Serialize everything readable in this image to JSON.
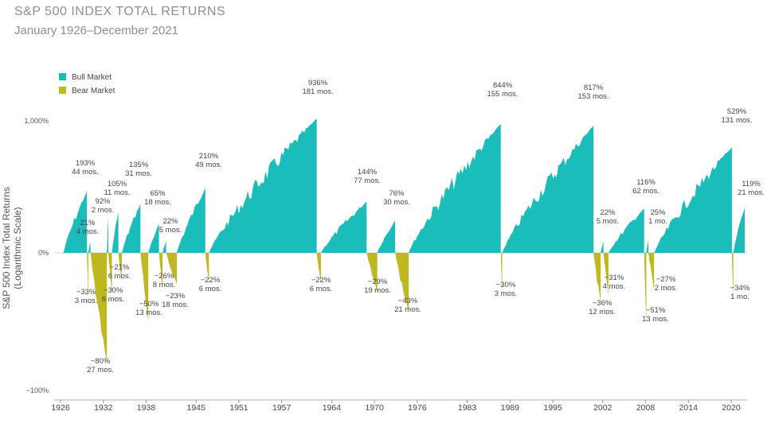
{
  "title": "S&P 500 INDEX TOTAL RETURNS",
  "subtitle": "January 1926–December 2021",
  "chart_data": {
    "type": "area",
    "title": "S&P 500 INDEX TOTAL RETURNS",
    "subtitle": "January 1926–December 2021",
    "ylabel": "S&P 500 Index Total Returns (Logarithmic Scale)",
    "y_scale": "log",
    "y_ticks": [
      "1,000%",
      "0%",
      "−100%"
    ],
    "x_ticks": [
      "1926",
      "1932",
      "1938",
      "1945",
      "1951",
      "1957",
      "1964",
      "1970",
      "1976",
      "1983",
      "1989",
      "1995",
      "2002",
      "2008",
      "2014",
      "2020"
    ],
    "xlim": [
      1926,
      2021.9
    ],
    "legend": {
      "position": "top-left",
      "entries": [
        {
          "name": "Bull Market",
          "color": "#1bbdbb"
        },
        {
          "name": "Bear Market",
          "color": "#c0b820"
        }
      ]
    },
    "series": [
      {
        "name": "Bull Market",
        "color": "#1bbdbb",
        "periods": [
          {
            "start": 1926.4,
            "end": 1929.7,
            "return_pct": 193,
            "label": "193%",
            "months": "44 mos."
          },
          {
            "start": 1929.9,
            "end": 1930.2,
            "return_pct": 21,
            "label": "21%",
            "months": "4 mos."
          },
          {
            "start": 1932.5,
            "end": 1932.7,
            "return_pct": 92,
            "label": "92%",
            "months": "2 mos."
          },
          {
            "start": 1933.2,
            "end": 1934.1,
            "return_pct": 105,
            "label": "105%",
            "months": "11 mos."
          },
          {
            "start": 1934.6,
            "end": 1937.2,
            "return_pct": 135,
            "label": "135%",
            "months": "31 mos."
          },
          {
            "start": 1938.3,
            "end": 1939.8,
            "return_pct": 65,
            "label": "65%",
            "months": "18 mos."
          },
          {
            "start": 1940.3,
            "end": 1940.8,
            "return_pct": 22,
            "label": "22%",
            "months": "5 mos."
          },
          {
            "start": 1942.3,
            "end": 1946.3,
            "return_pct": 210,
            "label": "210%",
            "months": "49 mos."
          },
          {
            "start": 1946.8,
            "end": 1961.9,
            "return_pct": 936,
            "label": "936%",
            "months": "181 mos."
          },
          {
            "start": 1962.5,
            "end": 1968.9,
            "return_pct": 144,
            "label": "144%",
            "months": "77 mos."
          },
          {
            "start": 1970.4,
            "end": 1972.9,
            "return_pct": 76,
            "label": "76%",
            "months": "30 mos."
          },
          {
            "start": 1974.8,
            "end": 1987.7,
            "return_pct": 844,
            "label": "844%",
            "months": "155 mos."
          },
          {
            "start": 1987.9,
            "end": 2000.7,
            "return_pct": 817,
            "label": "817%",
            "months": "153 mos."
          },
          {
            "start": 2001.7,
            "end": 2002.1,
            "return_pct": 22,
            "label": "22%",
            "months": "5 mos."
          },
          {
            "start": 2002.8,
            "end": 2007.8,
            "return_pct": 116,
            "label": "116%",
            "months": "62 mos."
          },
          {
            "start": 2008.1,
            "end": 2008.4,
            "return_pct": 25,
            "label": "25%",
            "months": "1 mo."
          },
          {
            "start": 2009.2,
            "end": 2020.1,
            "return_pct": 529,
            "label": "529%",
            "months": "131 mos."
          },
          {
            "start": 2020.3,
            "end": 2021.9,
            "return_pct": 119,
            "label": "119%",
            "months": "21 mos."
          }
        ]
      },
      {
        "name": "Bear Market",
        "color": "#c0b820",
        "periods": [
          {
            "start": 1929.7,
            "end": 1929.9,
            "return_pct": -33,
            "label": "−33%",
            "months": "3 mos."
          },
          {
            "start": 1930.2,
            "end": 1932.5,
            "return_pct": -80,
            "label": "−80%",
            "months": "27 mos."
          },
          {
            "start": 1932.7,
            "end": 1933.2,
            "return_pct": -30,
            "label": "−30%",
            "months": "6 mos."
          },
          {
            "start": 1934.1,
            "end": 1934.6,
            "return_pct": -21,
            "label": "−21%",
            "months": "6 mos."
          },
          {
            "start": 1937.2,
            "end": 1938.3,
            "return_pct": -50,
            "label": "−50%",
            "months": "13 mos."
          },
          {
            "start": 1939.8,
            "end": 1940.3,
            "return_pct": -26,
            "label": "−26%",
            "months": "8 mos."
          },
          {
            "start": 1940.8,
            "end": 1942.3,
            "return_pct": -23,
            "label": "−23%",
            "months": "18 mos."
          },
          {
            "start": 1946.3,
            "end": 1946.8,
            "return_pct": -22,
            "label": "−22%",
            "months": "6 mos."
          },
          {
            "start": 1961.9,
            "end": 1962.5,
            "return_pct": -22,
            "label": "−22%",
            "months": "6 mos."
          },
          {
            "start": 1968.9,
            "end": 1970.4,
            "return_pct": -29,
            "label": "−29%",
            "months": "19 mos."
          },
          {
            "start": 1972.9,
            "end": 1974.8,
            "return_pct": -43,
            "label": "−43%",
            "months": "21 mos."
          },
          {
            "start": 1987.7,
            "end": 1987.9,
            "return_pct": -30,
            "label": "−30%",
            "months": "3 mos."
          },
          {
            "start": 2000.7,
            "end": 2001.7,
            "return_pct": -36,
            "label": "−36%",
            "months": "12 mos."
          },
          {
            "start": 2002.1,
            "end": 2002.8,
            "return_pct": -31,
            "label": "−31%",
            "months": "4 mos."
          },
          {
            "start": 2007.8,
            "end": 2008.1,
            "return_pct": -51,
            "label": "−51%",
            "months": "13 mos."
          },
          {
            "start": 2008.4,
            "end": 2009.2,
            "return_pct": -27,
            "label": "−27%",
            "months": "2 mos."
          },
          {
            "start": 2020.1,
            "end": 2020.3,
            "return_pct": -34,
            "label": "−34%",
            "months": "1 mo."
          }
        ]
      }
    ]
  }
}
